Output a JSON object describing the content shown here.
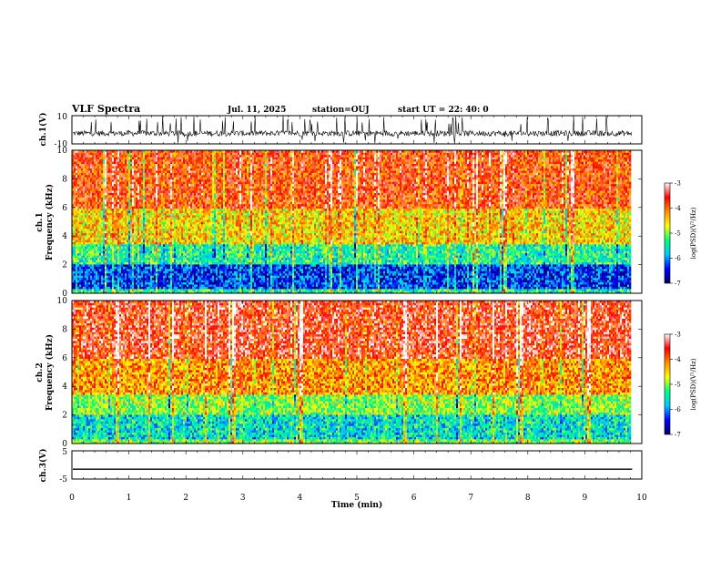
{
  "header": {
    "title": "VLF Spectra",
    "date": "Jul. 11, 2025",
    "station": "station=OUJ",
    "start": "start UT =  22: 40: 0"
  },
  "chart_data": [
    {
      "type": "line",
      "name": "ch1-waveform",
      "ylabel": "ch.1(V)",
      "ylim": [
        -10,
        10
      ],
      "yticks": [
        10,
        -10
      ],
      "xlim": [
        0,
        10
      ],
      "x_end": 9.83,
      "baseline": -2.5,
      "noise_band": [
        -4,
        0
      ],
      "spikes_max": 10,
      "spikes_min": -10
    },
    {
      "type": "heatmap",
      "name": "ch1-spectrogram",
      "ylabel": "ch.1",
      "ylabel2": "Frequency (kHz)",
      "ylim": [
        0,
        10
      ],
      "yticks": [
        "0",
        "2",
        "4",
        "6",
        "8",
        "10"
      ],
      "xlim": [
        0,
        10
      ],
      "x_end": 9.83,
      "colorbar": {
        "label": "log(PSD)(V²/Hz)",
        "range": [
          -7,
          -3
        ],
        "ticks": [
          "-3",
          "-4",
          "-5",
          "-6",
          "-7"
        ],
        "colors": [
          "#000060",
          "#0000ff",
          "#00c8ff",
          "#00ff80",
          "#ffff00",
          "#ff9000",
          "#ff0000",
          "#ffffff"
        ]
      },
      "bands": [
        {
          "from_khz": 0,
          "to_khz": 0.3,
          "log_psd": -5.4
        },
        {
          "from_khz": 0.3,
          "to_khz": 2.0,
          "log_psd": -6.3
        },
        {
          "from_khz": 2.0,
          "to_khz": 3.5,
          "log_psd": -5.4
        },
        {
          "from_khz": 3.5,
          "to_khz": 6.0,
          "log_psd": -4.5
        },
        {
          "from_khz": 6.0,
          "to_khz": 10.0,
          "log_psd": -3.8
        }
      ]
    },
    {
      "type": "heatmap",
      "name": "ch2-spectrogram",
      "ylabel": "ch.2",
      "ylabel2": "Frequency (kHz)",
      "ylim": [
        0,
        10
      ],
      "yticks": [
        "0",
        "2",
        "4",
        "6",
        "8",
        "10"
      ],
      "xlim": [
        0,
        10
      ],
      "x_end": 9.83,
      "colorbar": {
        "label": "log(PSD)(V²/Hz)",
        "range": [
          -7,
          -3
        ],
        "ticks": [
          "-3",
          "-4",
          "-5",
          "-6",
          "-7"
        ],
        "colors": [
          "#000060",
          "#0000ff",
          "#00c8ff",
          "#00ff80",
          "#ffff00",
          "#ff9000",
          "#ff0000",
          "#ffffff"
        ]
      },
      "bands": [
        {
          "from_khz": 0,
          "to_khz": 0.3,
          "log_psd": -5.0
        },
        {
          "from_khz": 0.3,
          "to_khz": 2.0,
          "log_psd": -5.6
        },
        {
          "from_khz": 2.0,
          "to_khz": 3.5,
          "log_psd": -5.0
        },
        {
          "from_khz": 3.5,
          "to_khz": 6.0,
          "log_psd": -4.2
        },
        {
          "from_khz": 6.0,
          "to_khz": 10.0,
          "log_psd": -3.6
        }
      ]
    },
    {
      "type": "line",
      "name": "ch3-waveform",
      "ylabel": "ch.3(V)",
      "ylim": [
        -5,
        5
      ],
      "yticks": [
        "5",
        "-5"
      ],
      "xlim": [
        0,
        10
      ],
      "x_end": 9.83,
      "value": -1.5,
      "xlabel": "Time (min)",
      "xticks": [
        "0",
        "1",
        "2",
        "3",
        "4",
        "5",
        "6",
        "7",
        "8",
        "9",
        "10"
      ]
    }
  ]
}
